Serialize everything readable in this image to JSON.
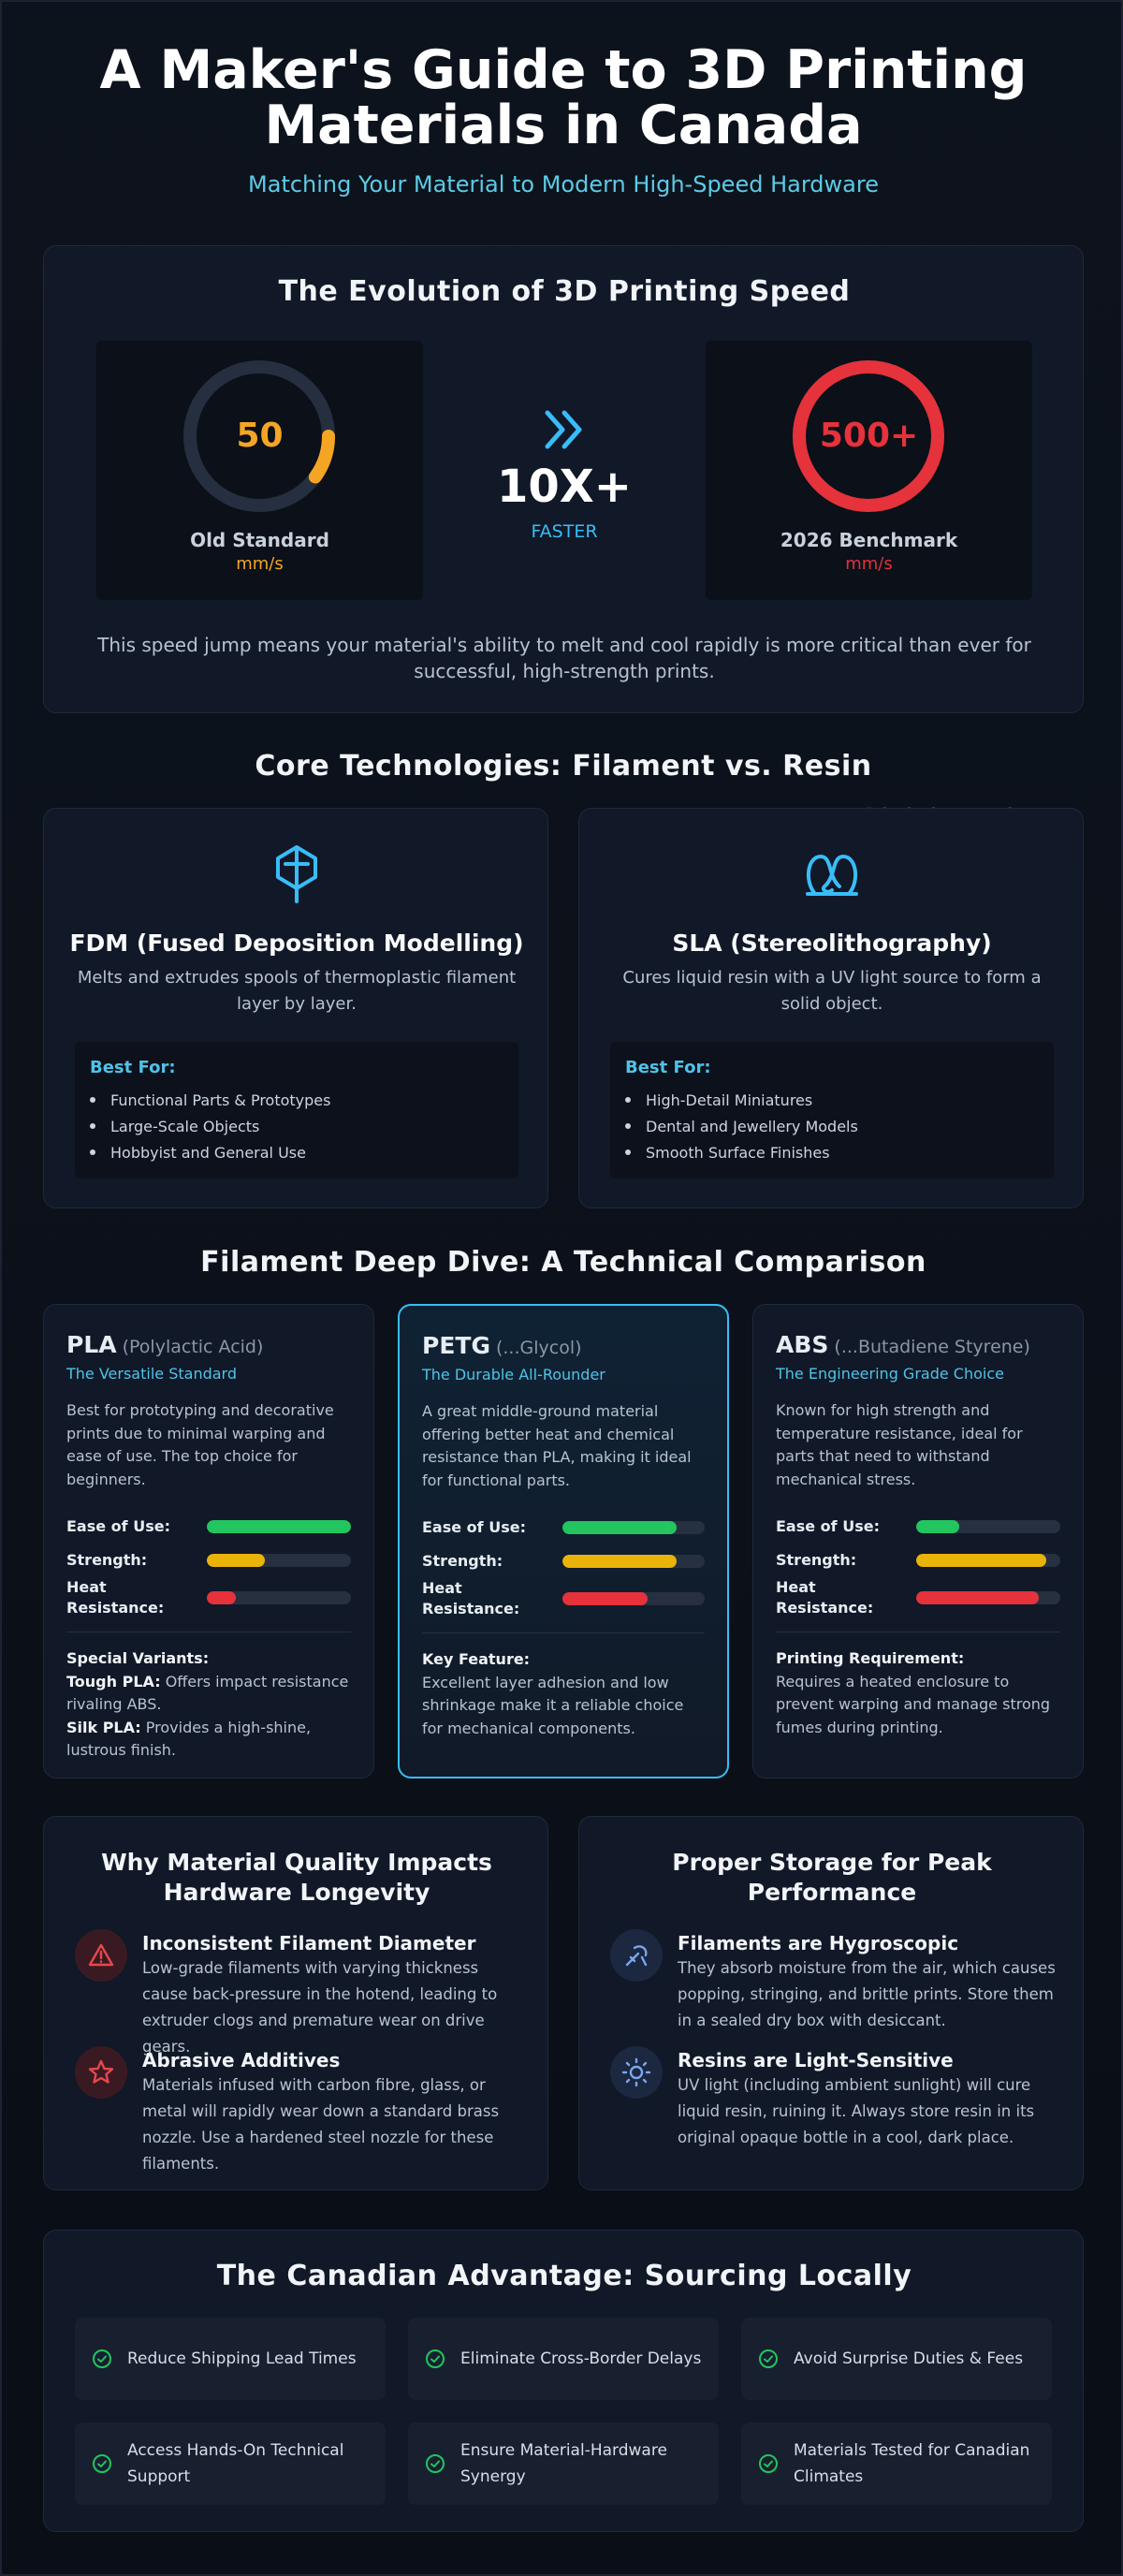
{
  "header": {
    "title": "A Maker's Guide to 3D Printing Materials in Canada",
    "subtitle": "Matching Your Material to Modern High-Speed Hardware"
  },
  "speed": {
    "title": "The Evolution of 3D Printing Speed",
    "gauges": [
      {
        "value": 50,
        "name": "Old Standard",
        "unit": "mm/s",
        "color": "#f5a524"
      },
      {
        "value": 500,
        "value_label": "500+",
        "name": "2026 Benchmark",
        "unit": "mm/s",
        "color": "#e5323b"
      }
    ],
    "multiplier": "10X+",
    "multiplier_caption": "FASTER",
    "note": "This speed jump means your material's ability to melt and cool rapidly is more critical than ever for successful, high-strength prints."
  },
  "technologies": {
    "title": "Core Technologies: Filament vs. Resin",
    "watermark": "3dprintingcanada.com",
    "cards": [
      {
        "name": "FDM (Fused Deposition Modelling)",
        "description": "Melts and extrudes spools of thermoplastic filament layer by layer.",
        "best_for_title": "Best For:",
        "best_for": [
          "Functional Parts & Prototypes",
          "Large-Scale Objects",
          "Hobbyist and General Use"
        ]
      },
      {
        "name": "SLA (Stereolithography)",
        "description": "Cures liquid resin with a UV light source to form a solid object.",
        "best_for_title": "Best For:",
        "best_for": [
          "High-Detail Miniatures",
          "Dental and Jewellery Models",
          "Smooth Surface Finishes"
        ]
      }
    ]
  },
  "filaments": {
    "title": "Filament Deep Dive: A Technical Comparison",
    "rating_range": [
      0,
      100
    ],
    "rating_colors": [
      "#22c55e",
      "#eab308",
      "#e5323b"
    ],
    "cards": [
      {
        "name": "PLA",
        "full_name": "(Polylactic Acid)",
        "tagline": "The Versatile Standard",
        "description": "Best for prototyping and decorative prints due to minimal warping and ease of use. The top choice for beginners.",
        "ratings": [
          {
            "label": "Ease of Use:",
            "value": 100
          },
          {
            "label": "Strength:",
            "value": 40
          },
          {
            "label": "Heat Resistance:",
            "value": 20
          }
        ],
        "note_title": "Special Variants:",
        "notes": [
          {
            "term": "Tough PLA:",
            "text": "Offers impact resistance rivaling ABS."
          },
          {
            "term": "Silk PLA:",
            "text": "Provides a high-shine, lustrous finish."
          }
        ]
      },
      {
        "name": "PETG",
        "full_name": "(...Glycol)",
        "tagline": "The Durable All-Rounder",
        "description": "A great middle-ground material offering better heat and chemical resistance than PLA, making it ideal for functional parts.",
        "ratings": [
          {
            "label": "Ease of Use:",
            "value": 80
          },
          {
            "label": "Strength:",
            "value": 80
          },
          {
            "label": "Heat Resistance:",
            "value": 60
          }
        ],
        "note_title": "Key Feature:",
        "notes": [
          {
            "text": "Excellent layer adhesion and low shrinkage make it a reliable choice for mechanical components."
          }
        ]
      },
      {
        "name": "ABS",
        "full_name": "(...Butadiene Styrene)",
        "tagline": "The Engineering Grade Choice",
        "description": "Known for high strength and temperature resistance, ideal for parts that need to withstand mechanical stress.",
        "ratings": [
          {
            "label": "Ease of Use:",
            "value": 30
          },
          {
            "label": "Strength:",
            "value": 90
          },
          {
            "label": "Heat Resistance:",
            "value": 85
          }
        ],
        "note_title": "Printing Requirement:",
        "notes": [
          {
            "text": "Requires a heated enclosure to prevent warping and manage strong fumes during printing."
          }
        ]
      }
    ]
  },
  "quality": {
    "title": "Why Material Quality Impacts Hardware Longevity",
    "items": [
      {
        "title": "Inconsistent Filament Diameter",
        "text": "Low-grade filaments with varying thickness cause back-pressure in the hotend, leading to extruder clogs and premature wear on drive gears."
      },
      {
        "title": "Abrasive Additives",
        "text": "Materials infused with carbon fibre, glass, or metal will rapidly wear down a standard brass nozzle. Use a hardened steel nozzle for these filaments."
      }
    ]
  },
  "storage": {
    "title": "Proper Storage for Peak Performance",
    "items": [
      {
        "title": "Filaments are Hygroscopic",
        "text": "They absorb moisture from the air, which causes popping, stringing, and brittle prints. Store them in a sealed dry box with desiccant."
      },
      {
        "title": "Resins are Light-Sensitive",
        "text": "UV light (including ambient sunlight) will cure liquid resin, ruining it. Always store resin in its original opaque bottle in a cool, dark place."
      }
    ]
  },
  "canada": {
    "title": "The Canadian Advantage: Sourcing Locally",
    "items": [
      "Reduce Shipping Lead Times",
      "Eliminate Cross-Border Delays",
      "Avoid Surprise Duties & Fees",
      "Access Hands-On Technical Support",
      "Ensure Material-Hardware Synergy",
      "Materials Tested for Canadian Climates"
    ]
  }
}
